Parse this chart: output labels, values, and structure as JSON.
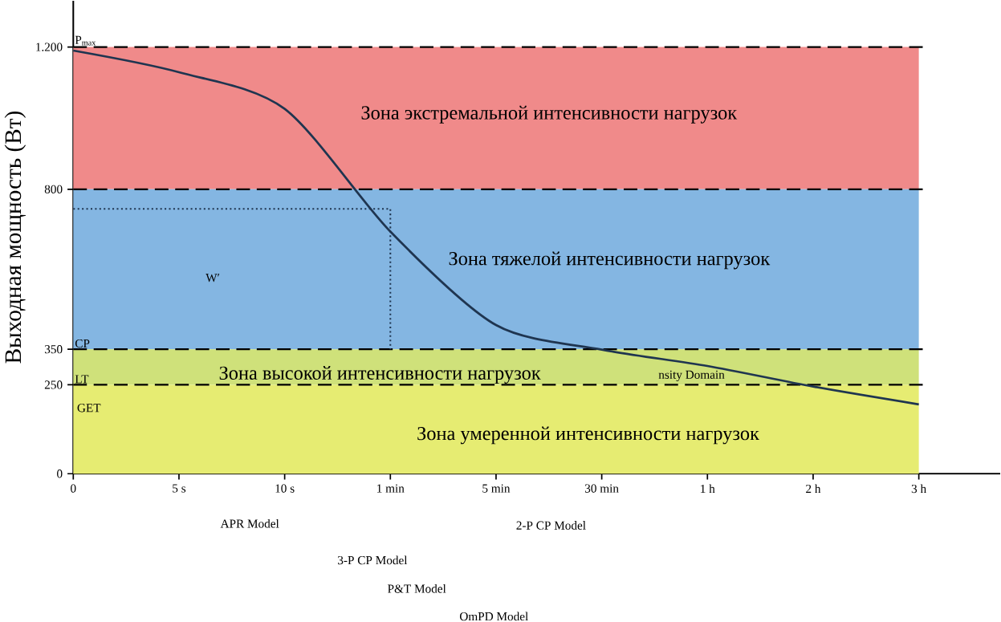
{
  "chart_data": {
    "type": "line",
    "ylabel": "Выходная мощность (Вт)",
    "categories": [
      "0",
      "5 s",
      "10 s",
      "1 min",
      "5 min",
      "30 min",
      "1 h",
      "2 h",
      "3 h"
    ],
    "series": [
      {
        "color": "#1f3550",
        "values": [
          1190,
          1129,
          1026,
          681,
          418,
          349,
          303,
          245,
          195
        ]
      },
      {
        "color": "#1f3550",
        "line_style": "dotted",
        "x": [
          "0",
          "1 min",
          "1 min"
        ],
        "values": [
          745,
          745,
          350
        ]
      }
    ],
    "ylim": [
      0,
      1330
    ],
    "yticks": [
      0,
      250,
      350,
      800,
      {
        "value": 1200,
        "label": "1.200"
      }
    ],
    "bands": [
      {
        "axis": "y",
        "from": 800,
        "to": 1200,
        "color": "#f08a8a",
        "label": "Зона экстремальной интенсивности нагрузок"
      },
      {
        "axis": "y",
        "from": 350,
        "to": 800,
        "color": "#84b6e2",
        "label": "Зона тяжелой интенсивности нагрузок"
      },
      {
        "axis": "y",
        "from": 250,
        "to": 350,
        "color": "#cfe17a",
        "label": "Зона высокой интенсивности нагрузок"
      },
      {
        "axis": "y",
        "from": 0,
        "to": 250,
        "color": "#e6ec72",
        "label": "Зона умеренной интенсивности нагрузок"
      }
    ],
    "ref_lines": [
      {
        "axis": "y",
        "value": 1200,
        "label": "P$_{max}$",
        "line_style": "dashed"
      },
      {
        "axis": "y",
        "value": 800,
        "line_style": "dashed"
      },
      {
        "axis": "y",
        "value": 350,
        "label": "CP",
        "line_style": "dashed"
      },
      {
        "axis": "y",
        "value": 250,
        "label": "LT",
        "line_style": "dashed"
      }
    ],
    "annotations": [
      "W′",
      "GET",
      "nsity Domain",
      "APR Model",
      "2-P CP Model",
      "3-P CP Model",
      "P&T Model",
      "OmPD Model"
    ]
  }
}
